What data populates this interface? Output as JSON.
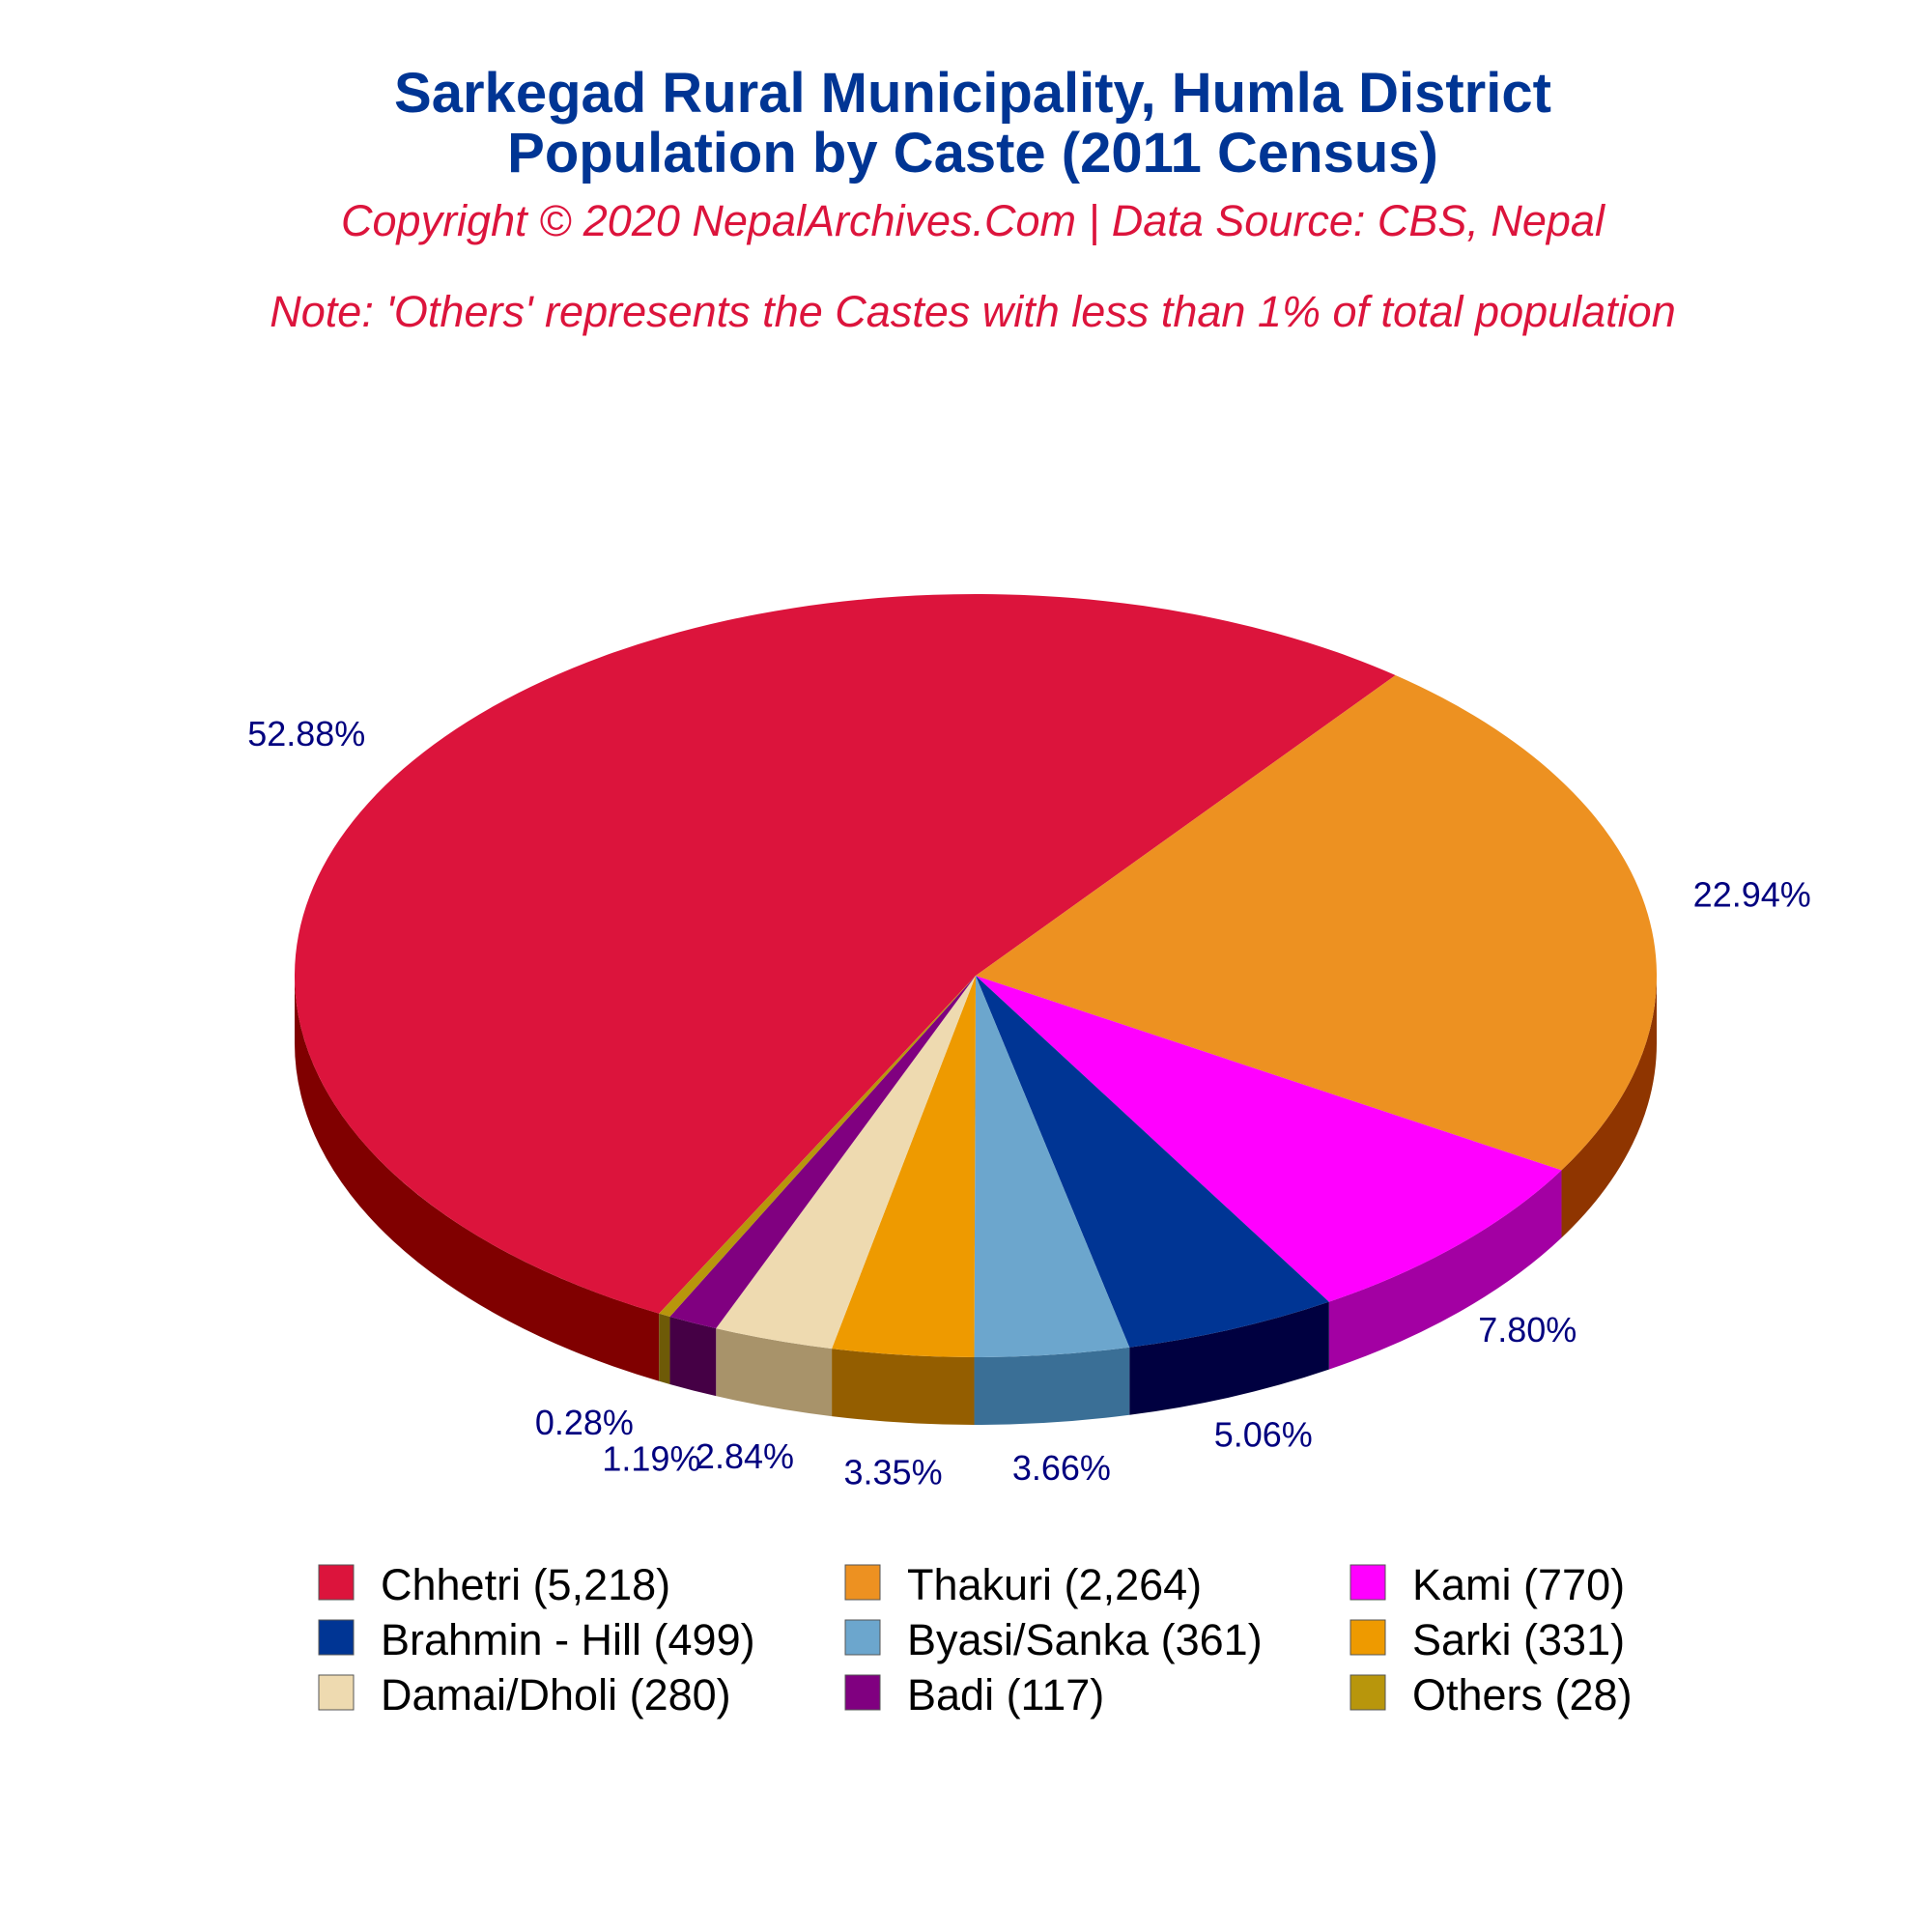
{
  "chart_data": {
    "type": "pie",
    "title": "Sarkegad Rural Municipality, Humla District",
    "subtitle": "Population by Caste (2011 Census)",
    "copyright": "Copyright © 2020 NepalArchives.Com | Data Source: CBS, Nepal",
    "note": "Note: 'Others' represents the Castes with less than 1% of total population",
    "legend_position": "bottom",
    "slices": [
      {
        "legend": "Chhetri (5,218)",
        "value": 5218,
        "percent_label": "52.88%",
        "color": "#DC143C",
        "side_color": "#800000"
      },
      {
        "legend": "Thakuri (2,264)",
        "value": 2264,
        "percent_label": "22.94%",
        "color": "#ED9121",
        "side_color": "#8F3500"
      },
      {
        "legend": "Kami (770)",
        "value": 770,
        "percent_label": "7.80%",
        "color": "#FF00FF",
        "side_color": "#A300A3"
      },
      {
        "legend": "Brahmin - Hill (499)",
        "value": 499,
        "percent_label": "5.06%",
        "color": "#003594",
        "side_color": "#000040"
      },
      {
        "legend": "Byasi/Sanka (361)",
        "value": 361,
        "percent_label": "3.66%",
        "color": "#6CA6CD",
        "side_color": "#3A6F96"
      },
      {
        "legend": "Sarki (331)",
        "value": 331,
        "percent_label": "3.35%",
        "color": "#EE9A00",
        "side_color": "#945E00"
      },
      {
        "legend": "Damai/Dholi (280)",
        "value": 280,
        "percent_label": "2.84%",
        "color": "#EEDAB0",
        "side_color": "#A8936A"
      },
      {
        "legend": "Badi (117)",
        "value": 117,
        "percent_label": "1.19%",
        "color": "#800080",
        "side_color": "#450045"
      },
      {
        "legend": "Others (28)",
        "value": 28,
        "percent_label": "0.28%",
        "color": "#B8960C",
        "side_color": "#6E5A07"
      }
    ]
  }
}
